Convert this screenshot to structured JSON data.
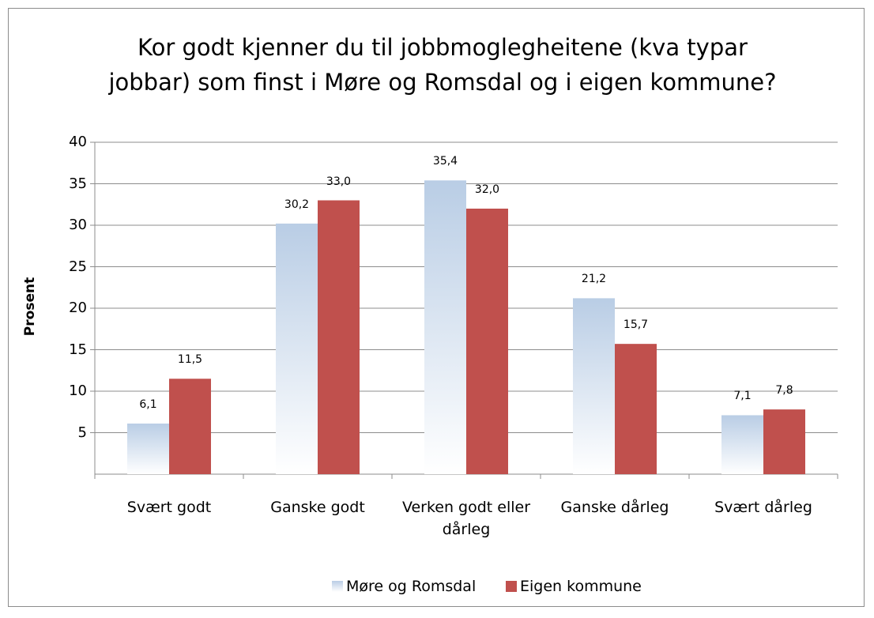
{
  "chart_data": {
    "type": "bar",
    "title": "Kor godt kjenner du til jobbmoglegheitene (kva typar jobbar) som finst i Møre og Romsdal og i eigen kommune?",
    "y_label": "Prosent",
    "categories": [
      "Svært godt",
      "Ganske godt",
      "Verken godt eller dårleg",
      "Ganske dårleg",
      "Svært dårleg"
    ],
    "series": [
      {
        "name": "Møre og Romsdal",
        "color": "#b9cde5",
        "gradient": true,
        "values": [
          6.1,
          30.2,
          35.4,
          21.2,
          7.1
        ],
        "value_labels": [
          "6,1",
          "30,2",
          "35,4",
          "21,2",
          "7,1"
        ]
      },
      {
        "name": "Eigen kommune",
        "color": "#c0504d",
        "values": [
          11.5,
          33.0,
          32.0,
          15.7,
          7.8
        ],
        "value_labels": [
          "11,5",
          "33,0",
          "32,0",
          "15,7",
          "7,8"
        ]
      }
    ],
    "ylim": [
      0,
      40
    ],
    "yticks": [
      5,
      10,
      15,
      20,
      25,
      30,
      35,
      40
    ],
    "grid": true,
    "legend": "bottom"
  }
}
